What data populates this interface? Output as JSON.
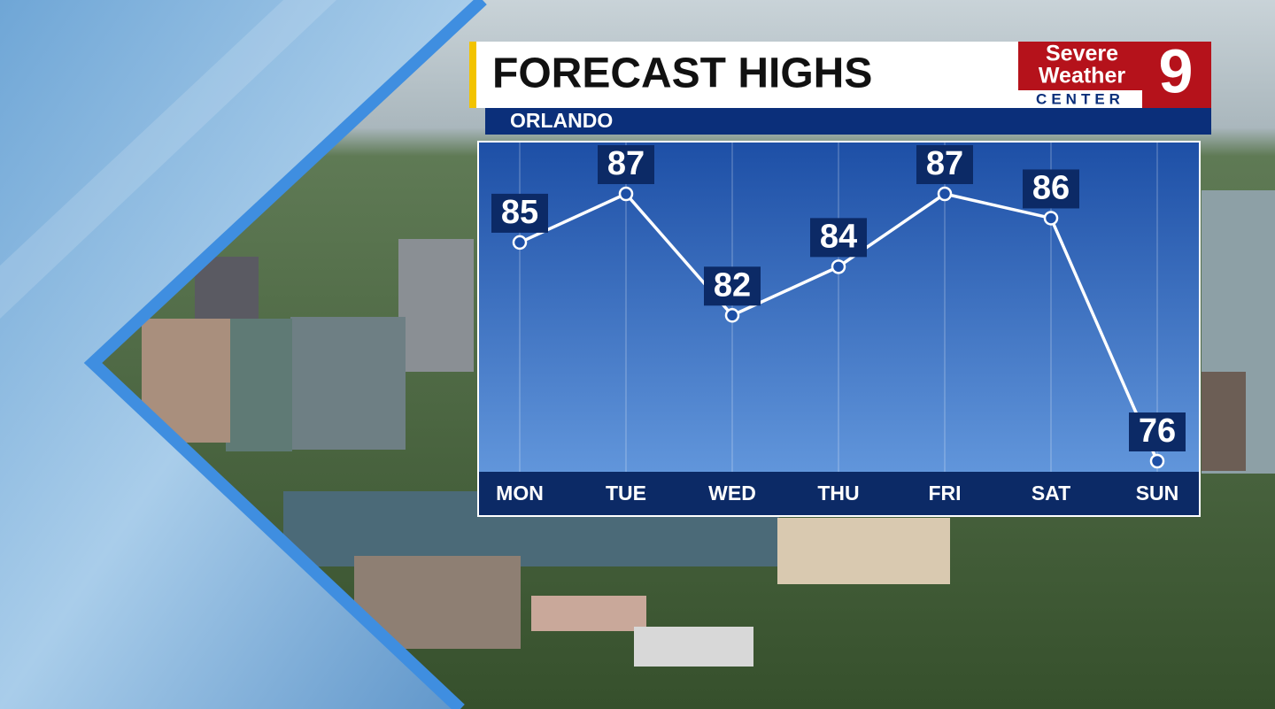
{
  "chart_data": {
    "type": "line",
    "title": "FORECAST HIGHS",
    "subtitle": "ORLANDO",
    "categories": [
      "MON",
      "TUE",
      "WED",
      "THU",
      "FRI",
      "SAT",
      "SUN"
    ],
    "values": [
      85,
      87,
      82,
      84,
      87,
      86,
      76
    ],
    "color": "#ffffff",
    "grid": true
  },
  "logo": {
    "line1": "Severe",
    "line2": "Weather",
    "line3": "CENTER",
    "number": "9"
  }
}
